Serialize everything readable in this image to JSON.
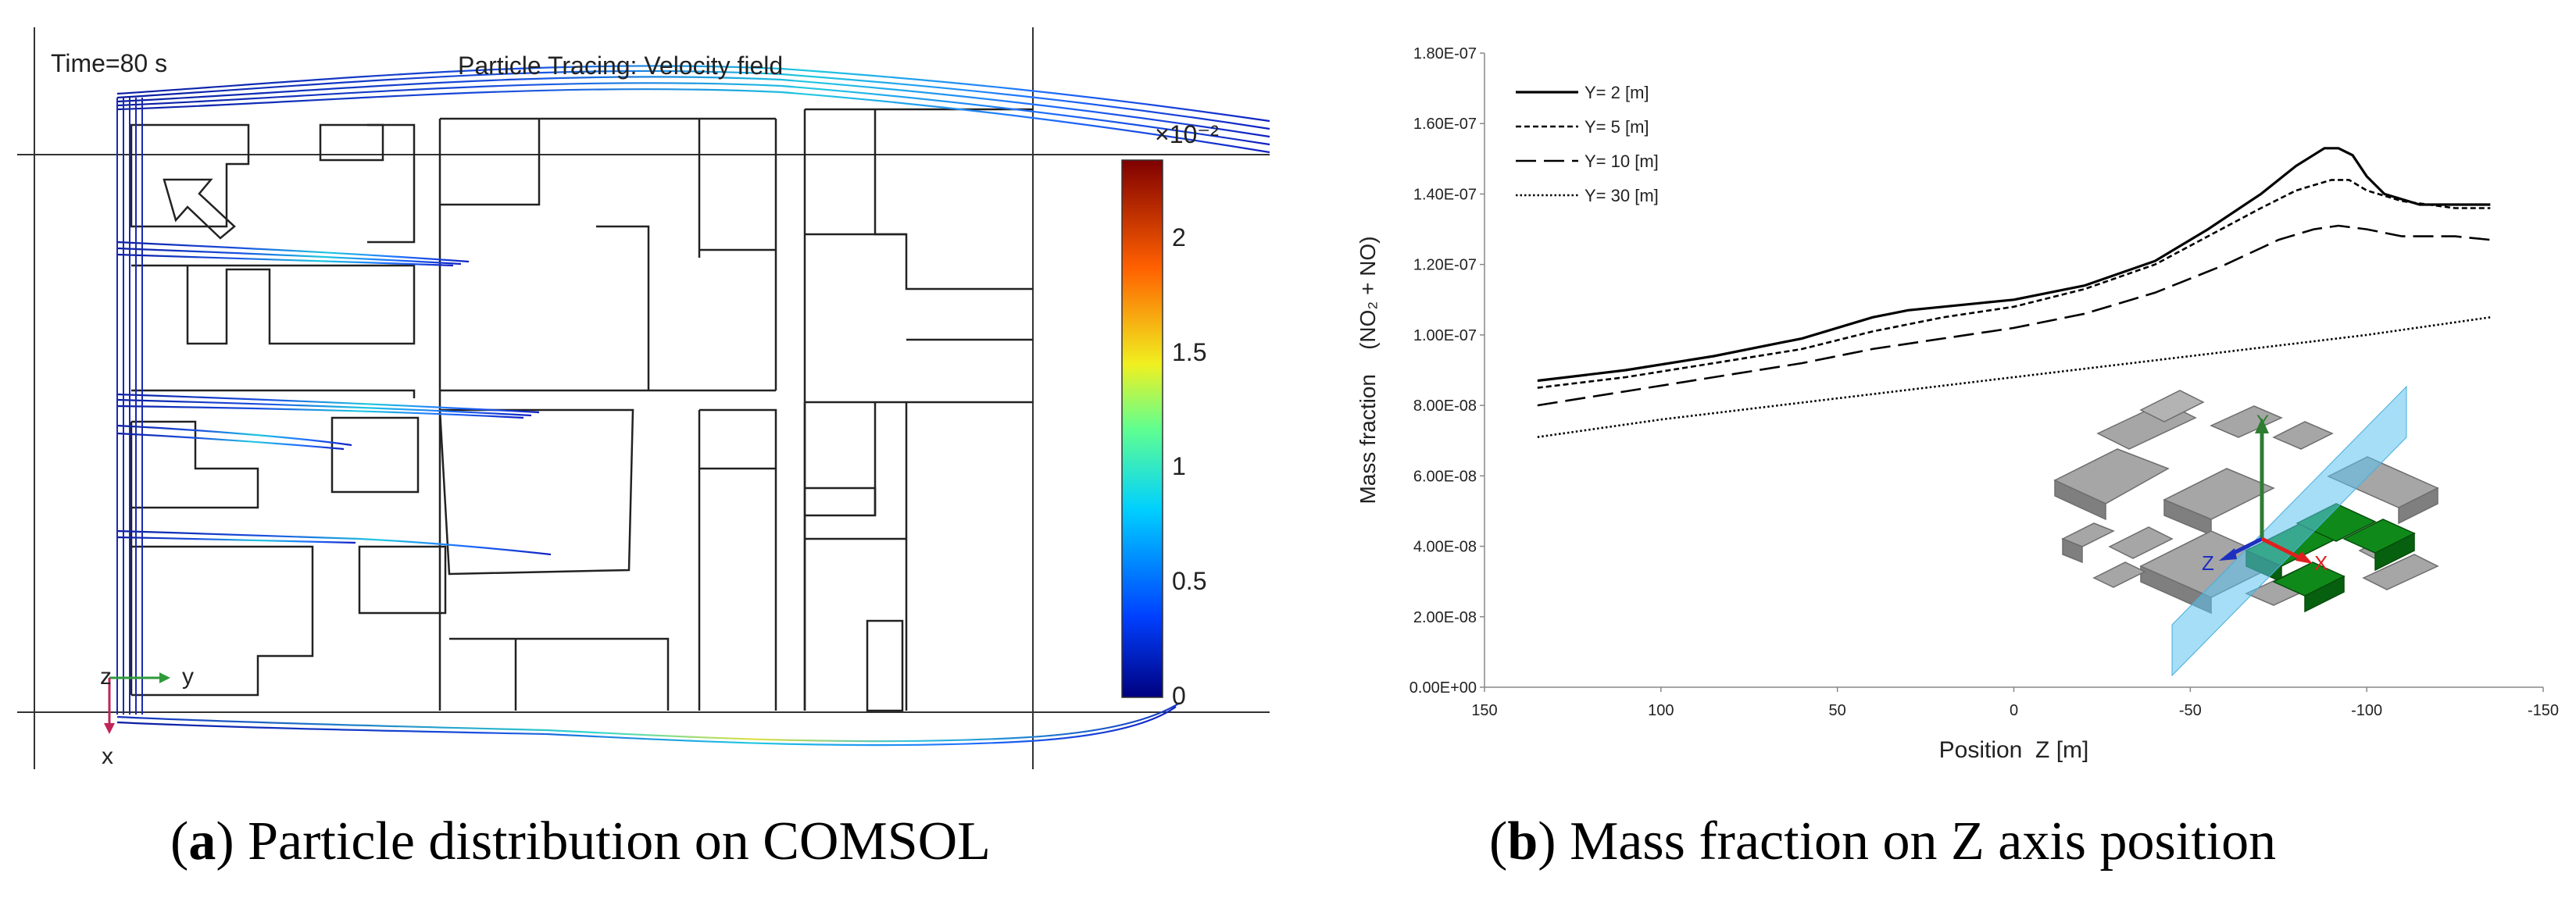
{
  "panel_a": {
    "time_label": "Time=80 s",
    "plot_title": "Particle Tracing: Velocity field",
    "colorbar_exponent": "×10⁻²",
    "colorbar_ticks": [
      "2",
      "1.5",
      "1",
      "0.5",
      "0"
    ],
    "axis_z": "z",
    "axis_y": "y",
    "axis_x": "x"
  },
  "panel_b": {
    "inset_labels": {
      "y": "Y",
      "z": "Z",
      "x": "X"
    }
  },
  "captions": {
    "a_letter": "a",
    "a_text": "Particle distribution on COMSOL",
    "b_letter": "b",
    "b_text": "Mass fraction on Z axis position"
  },
  "chart_data": [
    {
      "type": "line",
      "xlabel": "Position  Z [m]",
      "ylabel": "Mass fraction    (NO₂ + NO)",
      "x_ticks": [
        "150",
        "100",
        "50",
        "0",
        "-50",
        "-100",
        "-150"
      ],
      "y_ticks": [
        "0.00E+00",
        "2.00E-08",
        "4.00E-08",
        "6.00E-08",
        "8.00E-08",
        "1.00E-07",
        "1.20E-07",
        "1.40E-07",
        "1.60E-07",
        "1.80E-07"
      ],
      "xlim": [
        150,
        -150
      ],
      "ylim": [
        0,
        1.8e-07
      ],
      "legend_position": "top-left",
      "series": [
        {
          "name": "Y= 2 [m]",
          "style": "solid",
          "x": [
            135,
            110,
            85,
            60,
            40,
            30,
            20,
            10,
            0,
            -20,
            -40,
            -55,
            -70,
            -80,
            -88,
            -92,
            -96,
            -100,
            -105,
            -115,
            -125,
            -135
          ],
          "y": [
            8.7e-08,
            9e-08,
            9.4e-08,
            9.9e-08,
            1.05e-07,
            1.07e-07,
            1.08e-07,
            1.09e-07,
            1.1e-07,
            1.14e-07,
            1.21e-07,
            1.3e-07,
            1.4e-07,
            1.48e-07,
            1.53e-07,
            1.53e-07,
            1.51e-07,
            1.45e-07,
            1.4e-07,
            1.37e-07,
            1.37e-07,
            1.37e-07
          ]
        },
        {
          "name": "Y= 5 [m]",
          "style": "dashed-short",
          "x": [
            135,
            110,
            85,
            60,
            40,
            20,
            0,
            -20,
            -40,
            -55,
            -70,
            -80,
            -90,
            -95,
            -100,
            -110,
            -125,
            -135
          ],
          "y": [
            8.5e-08,
            8.8e-08,
            9.2e-08,
            9.6e-08,
            1.01e-07,
            1.05e-07,
            1.08e-07,
            1.13e-07,
            1.2e-07,
            1.28e-07,
            1.36e-07,
            1.41e-07,
            1.44e-07,
            1.44e-07,
            1.41e-07,
            1.38e-07,
            1.36e-07,
            1.36e-07
          ]
        },
        {
          "name": "Y= 10 [m]",
          "style": "dashed-long",
          "x": [
            135,
            110,
            85,
            60,
            40,
            20,
            0,
            -20,
            -40,
            -60,
            -75,
            -85,
            -92,
            -100,
            -110,
            -125,
            -135
          ],
          "y": [
            8e-08,
            8.4e-08,
            8.8e-08,
            9.2e-08,
            9.6e-08,
            9.9e-08,
            1.02e-07,
            1.06e-07,
            1.12e-07,
            1.2e-07,
            1.27e-07,
            1.3e-07,
            1.31e-07,
            1.3e-07,
            1.28e-07,
            1.28e-07,
            1.27e-07
          ]
        },
        {
          "name": "Y= 30 [m]",
          "style": "dotted",
          "x": [
            135,
            100,
            50,
            0,
            -50,
            -100,
            -135
          ],
          "y": [
            7.1e-08,
            7.6e-08,
            8.2e-08,
            8.8e-08,
            9.4e-08,
            1e-07,
            1.05e-07
          ]
        }
      ]
    }
  ]
}
